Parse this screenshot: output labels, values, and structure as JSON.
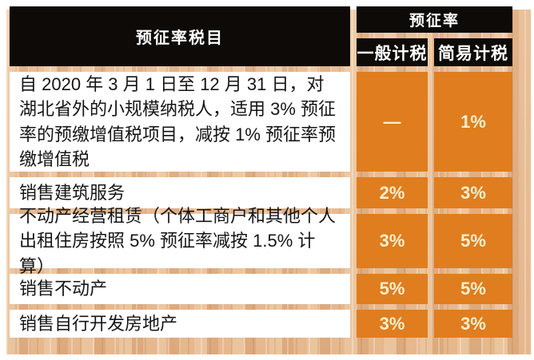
{
  "table": {
    "header": {
      "items_col": "预征率税目",
      "rate_group": "预征率",
      "general_col": "一般计税",
      "simplified_col": "简易计税"
    },
    "rows": [
      {
        "item": "自 2020 年 3 月 1 日至 12 月 31 日，对湖北省外的小规模纳税人，适用 3% 预征率的预缴增值税项目，减按 1% 预征率预缴增值税",
        "general": "—",
        "simplified": "1%"
      },
      {
        "item": "销售建筑服务",
        "general": "2%",
        "simplified": "3%"
      },
      {
        "item": "不动产经营租赁（个体工商户和其他个人出租住房按照 5% 预征率减按 1.5% 计算）",
        "general": "3%",
        "simplified": "5%"
      },
      {
        "item": "销售不动产",
        "general": "5%",
        "simplified": "5%"
      },
      {
        "item": "销售自行开发房地产",
        "general": "3%",
        "simplified": "3%"
      }
    ],
    "colors": {
      "accent_orange": "#e07d1e",
      "header_black": "#0d0a08",
      "wood_base": "#e3b68c",
      "rate_text": "#f8efd0"
    }
  },
  "chart_data": {
    "type": "table",
    "title": "预征率",
    "columns": [
      "预征率税目",
      "一般计税",
      "简易计税"
    ],
    "rows": [
      [
        "自 2020 年 3 月 1 日至 12 月 31 日，对湖北省外的小规模纳税人，适用 3% 预征率的预缴增值税项目，减按 1% 预征率预缴增值税",
        "—",
        "1%"
      ],
      [
        "销售建筑服务",
        "2%",
        "3%"
      ],
      [
        "不动产经营租赁（个体工商户和其他个人出租住房按照 5% 预征率减按 1.5% 计算）",
        "3%",
        "5%"
      ],
      [
        "销售不动产",
        "5%",
        "5%"
      ],
      [
        "销售自行开发房地产",
        "3%",
        "3%"
      ]
    ]
  }
}
